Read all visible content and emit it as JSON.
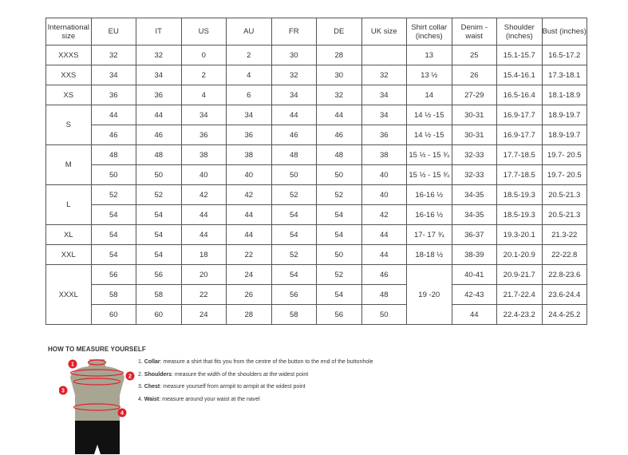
{
  "table": {
    "headers": [
      "International size",
      "EU",
      "IT",
      "US",
      "AU",
      "FR",
      "DE",
      "UK size",
      "Shirt collar (inches)",
      "Denim - waist",
      "Shoulder (inches)",
      "Bust (inches)"
    ],
    "rows": [
      [
        "XXXS",
        "32",
        "32",
        "0",
        "2",
        "30",
        "28",
        "",
        "13",
        "25",
        "15.1-15.7",
        "16.5-17.2"
      ],
      [
        "XXS",
        "34",
        "34",
        "2",
        "4",
        "32",
        "30",
        "32",
        "13 ½",
        "26",
        "15.4-16.1",
        "17.3-18.1"
      ],
      [
        "XS",
        "36",
        "36",
        "4",
        "6",
        "34",
        "32",
        "34",
        "14",
        "27-29",
        "16.5-16.4",
        "18.1-18.9"
      ],
      [
        "S",
        "44",
        "44",
        "34",
        "34",
        "44",
        "44",
        "34",
        "14 ½ -15",
        "30-31",
        "16.9-17.7",
        "18.9-19.7"
      ],
      [
        null,
        "46",
        "46",
        "36",
        "36",
        "46",
        "46",
        "36",
        "14 ½ -15",
        "30-31",
        "16.9-17.7",
        "18.9-19.7"
      ],
      [
        "M",
        "48",
        "48",
        "38",
        "38",
        "48",
        "48",
        "38",
        "15 ½ - 15 ¾",
        "32-33",
        "17.7-18.5",
        "19.7- 20.5"
      ],
      [
        null,
        "50",
        "50",
        "40",
        "40",
        "50",
        "50",
        "40",
        "15 ½ - 15 ¾",
        "32-33",
        "17.7-18.5",
        "19.7- 20.5"
      ],
      [
        "L",
        "52",
        "52",
        "42",
        "42",
        "52",
        "52",
        "40",
        "16-16 ½",
        "34-35",
        "18.5-19.3",
        "20.5-21.3"
      ],
      [
        null,
        "54",
        "54",
        "44",
        "44",
        "54",
        "54",
        "42",
        "16-16 ½",
        "34-35",
        "18.5-19.3",
        "20.5-21.3"
      ],
      [
        "XL",
        "54",
        "54",
        "44",
        "44",
        "54",
        "54",
        "44",
        "17- 17 ¾",
        "36-37",
        "19.3-20.1",
        "21.3-22"
      ],
      [
        "XXL",
        "54",
        "54",
        "18",
        "22",
        "52",
        "50",
        "44",
        "18-18 ½",
        "38-39",
        "20.1-20.9",
        "22-22.8"
      ],
      [
        "XXXL",
        "56",
        "56",
        "20",
        "24",
        "54",
        "52",
        "46",
        "19 -20",
        "40-41",
        "20.9-21.7",
        "22.8-23.6"
      ],
      [
        null,
        "58",
        "58",
        "22",
        "26",
        "56",
        "54",
        "48",
        null,
        "42-43",
        "21.7-22.4",
        "23.6-24.4"
      ],
      [
        null,
        "60",
        "60",
        "24",
        "28",
        "58",
        "56",
        "50",
        null,
        "44",
        "22.4-23.2",
        "24.4-25.2"
      ]
    ]
  },
  "measure": {
    "title": "HOW TO MEASURE YOURSELF",
    "steps": [
      {
        "num": "1.",
        "term": "Collar",
        "text": ": measure a shirt that fits you from the centre of the button to the end of the buttonhole"
      },
      {
        "num": "2.",
        "term": "Shoulders",
        "text": ": measure the width of the shoulders at the widest point"
      },
      {
        "num": "3.",
        "term": "Chest",
        "text": ": measure yourself from armpit to armpit at the widest point"
      },
      {
        "num": "4.",
        "term": "Waist",
        "text": ": measure around your waist at the navel"
      }
    ],
    "markers": [
      "1",
      "2",
      "3",
      "4"
    ],
    "colors": {
      "accent": "#e0202a",
      "body": "#a8a592",
      "pants": "#111111"
    }
  }
}
